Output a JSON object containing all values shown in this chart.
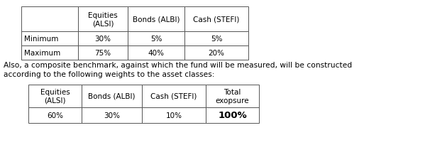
{
  "table1": {
    "col_headers": [
      "",
      "Equities\n(ALSI)",
      "Bonds (ALBI)",
      "Cash (STEFI)"
    ],
    "rows": [
      [
        "Minimum",
        "30%",
        "5%",
        "5%"
      ],
      [
        "Maximum",
        "75%",
        "40%",
        "20%"
      ]
    ]
  },
  "paragraph_line1": "Also, a composite benchmark, against which the fund will be measured, will be constructed",
  "paragraph_line2": "according to the following weights to the asset classes:",
  "table2": {
    "col_headers": [
      "Equities\n(ALSI)",
      "Bonds (ALBI)",
      "Cash (STEFI)",
      "Total\nexopsure"
    ],
    "rows": [
      [
        "60%",
        "30%",
        "10%",
        "100%"
      ]
    ]
  },
  "font_size": 7.5,
  "font_size_100": 9.5,
  "bg_color": "#ffffff",
  "border_color": "#555555",
  "text_color": "#000000"
}
